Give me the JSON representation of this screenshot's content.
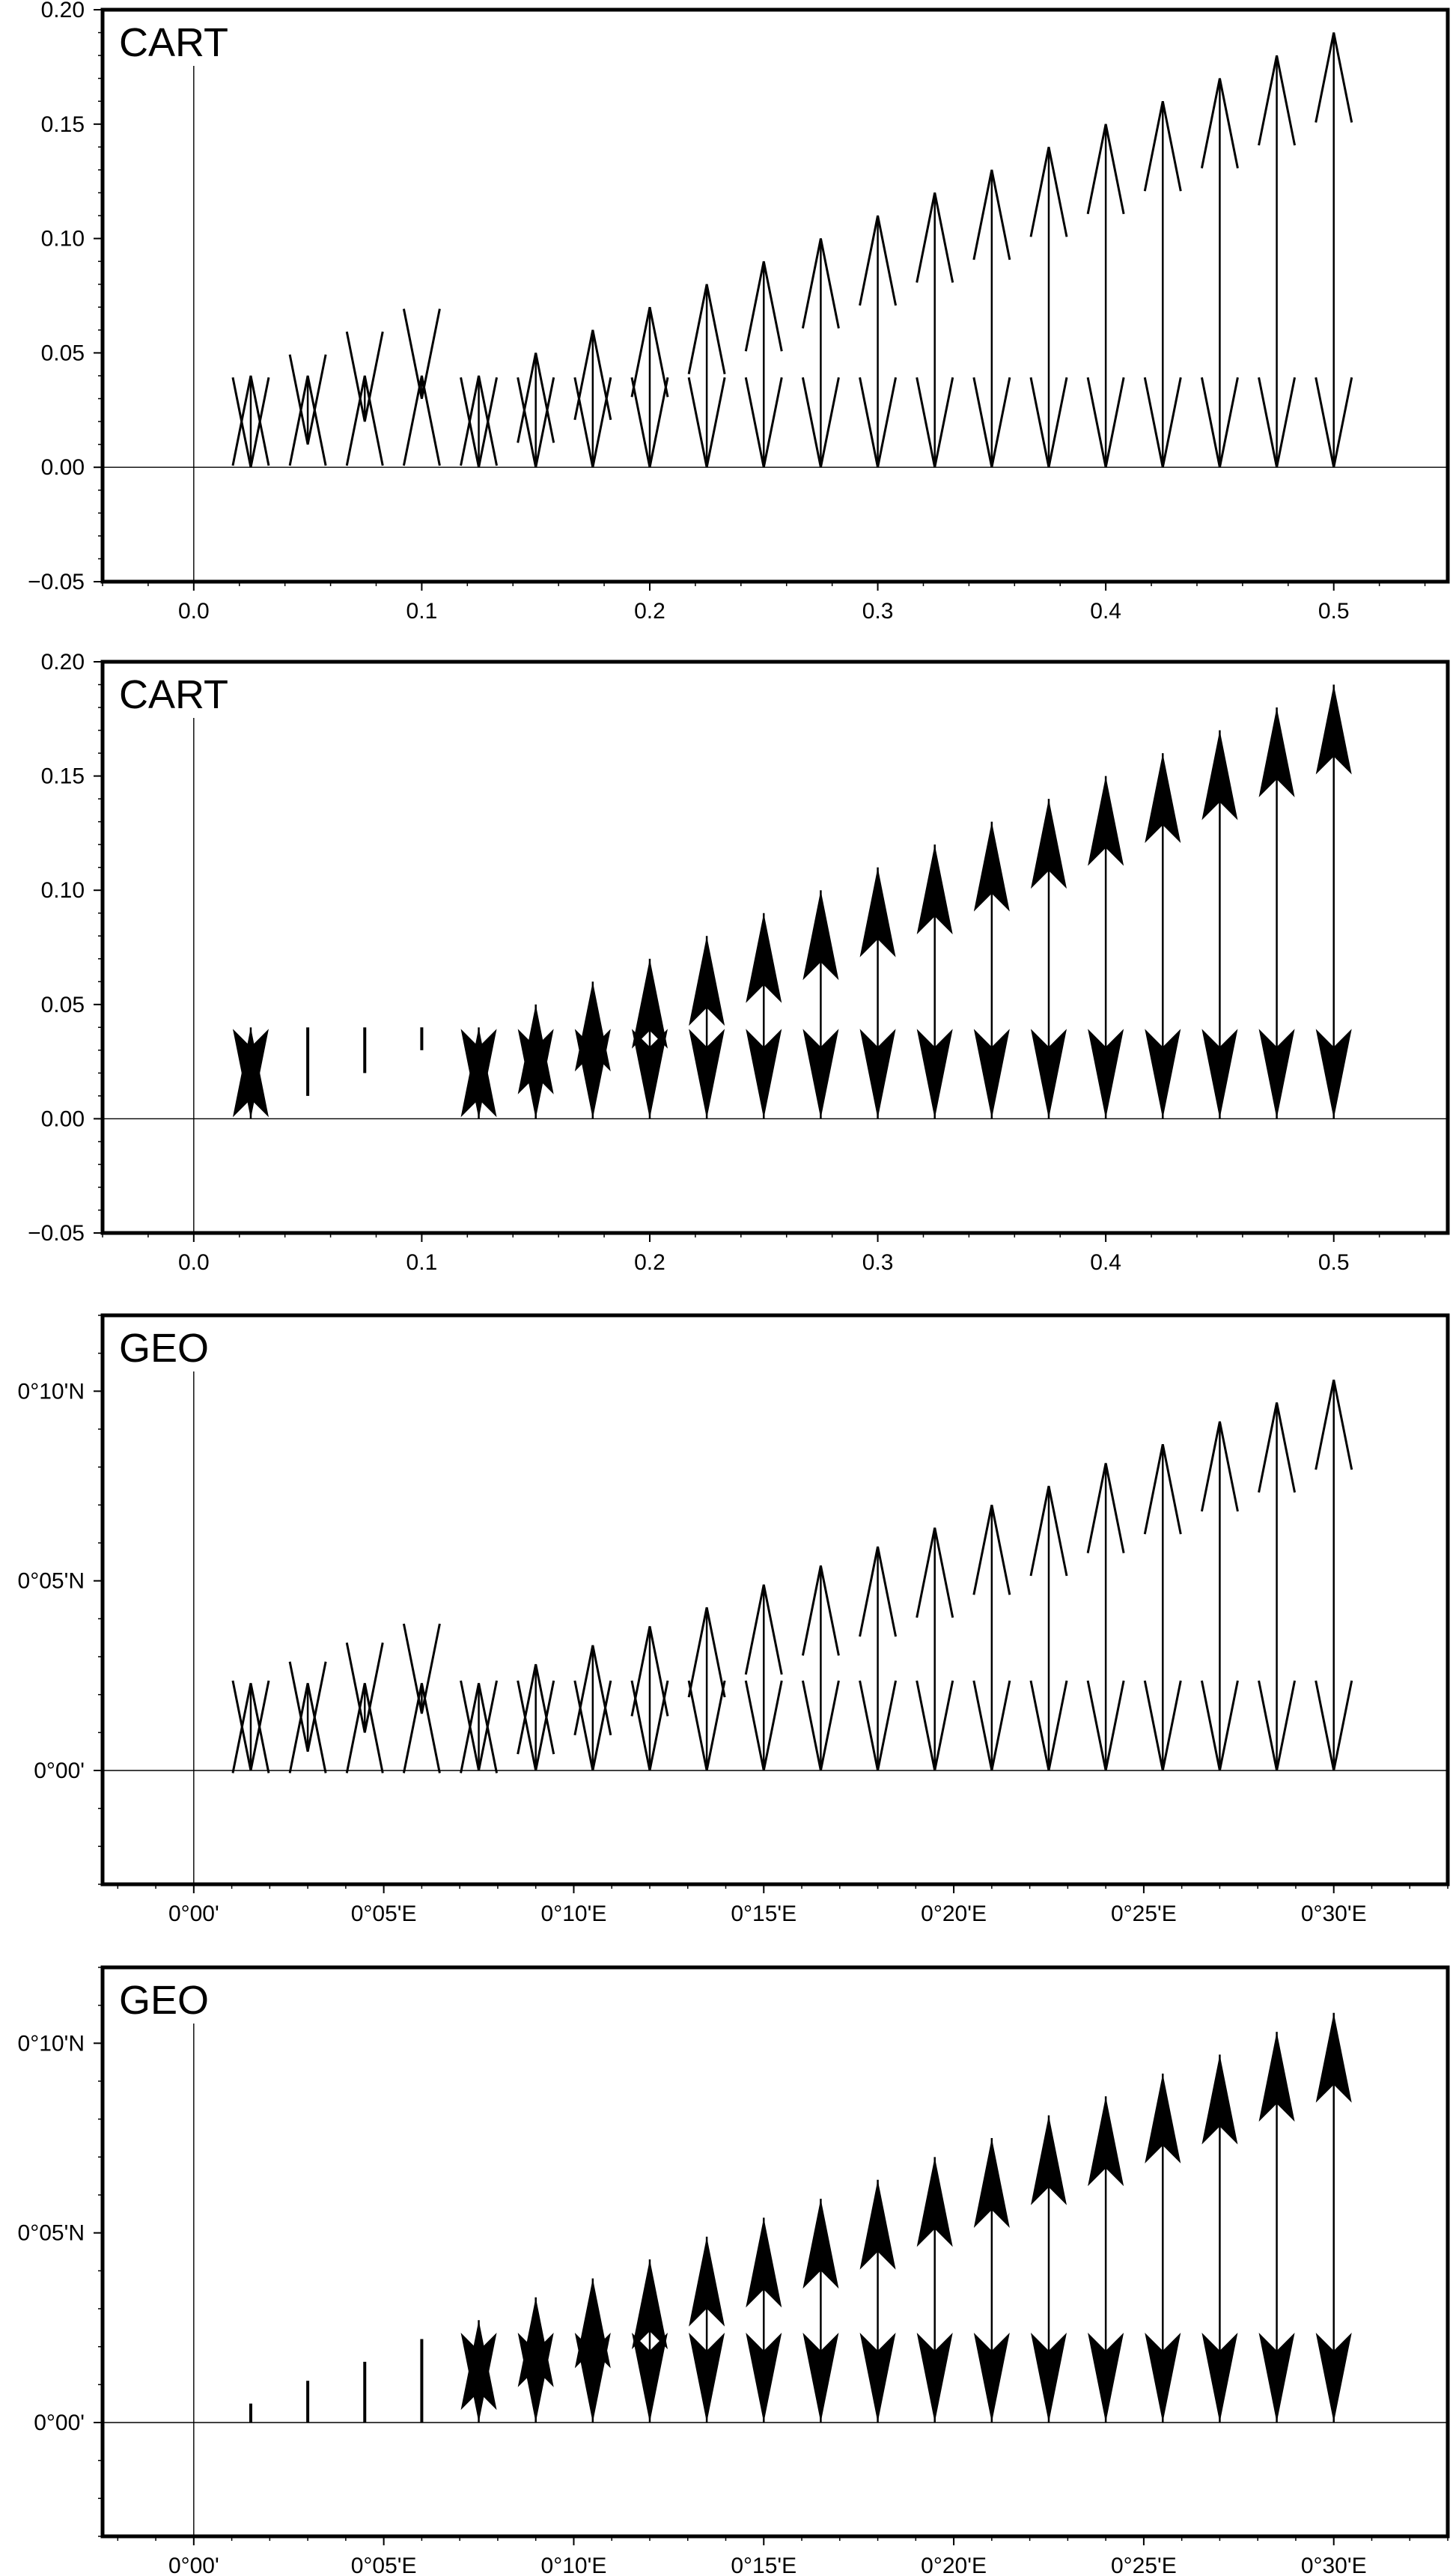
{
  "chart_data": [
    {
      "type": "vector",
      "title": "CART",
      "arrow_style": "open",
      "x_ticks": [
        0.0,
        0.1,
        0.2,
        0.3,
        0.4,
        0.5
      ],
      "x_tick_labels": [
        "0.0",
        "0.1",
        "0.2",
        "0.3",
        "0.4",
        "0.5"
      ],
      "y_ticks": [
        -0.05,
        0.0,
        0.05,
        0.1,
        0.15,
        0.2
      ],
      "y_tick_labels": [
        "−0.05",
        "0.00",
        "0.05",
        "0.10",
        "0.15",
        "0.20"
      ],
      "xlim": [
        -0.04,
        0.55
      ],
      "ylim": [
        -0.05,
        0.2
      ],
      "reference_lines": {
        "x": 0,
        "y": 0
      },
      "vectors": [
        {
          "x": 0.025,
          "y0": 0.0,
          "y1": 0.04
        },
        {
          "x": 0.05,
          "y0": 0.01,
          "y1": 0.04
        },
        {
          "x": 0.075,
          "y0": 0.02,
          "y1": 0.04
        },
        {
          "x": 0.1,
          "y0": 0.03,
          "y1": 0.04
        },
        {
          "x": 0.125,
          "y0": 0.0,
          "y1": 0.04
        },
        {
          "x": 0.15,
          "y0": 0.0,
          "y1": 0.05
        },
        {
          "x": 0.175,
          "y0": 0.0,
          "y1": 0.06
        },
        {
          "x": 0.2,
          "y0": 0.0,
          "y1": 0.07
        },
        {
          "x": 0.225,
          "y0": 0.0,
          "y1": 0.08
        },
        {
          "x": 0.25,
          "y0": 0.0,
          "y1": 0.09
        },
        {
          "x": 0.275,
          "y0": 0.0,
          "y1": 0.1
        },
        {
          "x": 0.3,
          "y0": 0.0,
          "y1": 0.11
        },
        {
          "x": 0.325,
          "y0": 0.0,
          "y1": 0.12
        },
        {
          "x": 0.35,
          "y0": 0.0,
          "y1": 0.13
        },
        {
          "x": 0.375,
          "y0": 0.0,
          "y1": 0.14
        },
        {
          "x": 0.4,
          "y0": 0.0,
          "y1": 0.15
        },
        {
          "x": 0.425,
          "y0": 0.0,
          "y1": 0.16
        },
        {
          "x": 0.45,
          "y0": 0.0,
          "y1": 0.17
        },
        {
          "x": 0.475,
          "y0": 0.0,
          "y1": 0.18
        },
        {
          "x": 0.5,
          "y0": 0.0,
          "y1": 0.19
        }
      ]
    },
    {
      "type": "vector",
      "title": "CART",
      "arrow_style": "filled",
      "x_ticks": [
        0.0,
        0.1,
        0.2,
        0.3,
        0.4,
        0.5
      ],
      "x_tick_labels": [
        "0.0",
        "0.1",
        "0.2",
        "0.3",
        "0.4",
        "0.5"
      ],
      "y_ticks": [
        -0.05,
        0.0,
        0.05,
        0.1,
        0.15,
        0.2
      ],
      "y_tick_labels": [
        "−0.05",
        "0.00",
        "0.05",
        "0.10",
        "0.15",
        "0.20"
      ],
      "xlim": [
        -0.04,
        0.55
      ],
      "ylim": [
        -0.05,
        0.2
      ],
      "reference_lines": {
        "x": 0,
        "y": 0
      },
      "vectors": [
        {
          "x": 0.025,
          "y0": 0.0,
          "y1": 0.04
        },
        {
          "x": 0.05,
          "y0": 0.01,
          "y1": 0.04
        },
        {
          "x": 0.075,
          "y0": 0.02,
          "y1": 0.04
        },
        {
          "x": 0.1,
          "y0": 0.03,
          "y1": 0.04
        },
        {
          "x": 0.125,
          "y0": 0.0,
          "y1": 0.04
        },
        {
          "x": 0.15,
          "y0": 0.0,
          "y1": 0.05
        },
        {
          "x": 0.175,
          "y0": 0.0,
          "y1": 0.06
        },
        {
          "x": 0.2,
          "y0": 0.0,
          "y1": 0.07
        },
        {
          "x": 0.225,
          "y0": 0.0,
          "y1": 0.08
        },
        {
          "x": 0.25,
          "y0": 0.0,
          "y1": 0.09
        },
        {
          "x": 0.275,
          "y0": 0.0,
          "y1": 0.1
        },
        {
          "x": 0.3,
          "y0": 0.0,
          "y1": 0.11
        },
        {
          "x": 0.325,
          "y0": 0.0,
          "y1": 0.12
        },
        {
          "x": 0.35,
          "y0": 0.0,
          "y1": 0.13
        },
        {
          "x": 0.375,
          "y0": 0.0,
          "y1": 0.14
        },
        {
          "x": 0.4,
          "y0": 0.0,
          "y1": 0.15
        },
        {
          "x": 0.425,
          "y0": 0.0,
          "y1": 0.16
        },
        {
          "x": 0.45,
          "y0": 0.0,
          "y1": 0.17
        },
        {
          "x": 0.475,
          "y0": 0.0,
          "y1": 0.18
        },
        {
          "x": 0.5,
          "y0": 0.0,
          "y1": 0.19
        }
      ]
    },
    {
      "type": "vector",
      "title": "GEO",
      "arrow_style": "open",
      "x_ticks": [
        0,
        5,
        10,
        15,
        20,
        25,
        30
      ],
      "x_tick_labels": [
        "0°00'",
        "0°05'E",
        "0°10'E",
        "0°15'E",
        "0°20'E",
        "0°25'E",
        "0°30'E"
      ],
      "y_ticks": [
        0,
        5,
        10
      ],
      "y_tick_labels": [
        "0°00'",
        "0°05'N",
        "0°10'N"
      ],
      "xlim": [
        -2.4,
        33
      ],
      "ylim": [
        -3,
        12
      ],
      "reference_lines": {
        "x": 0,
        "y": 0
      },
      "vectors": [
        {
          "x": 1.5,
          "y0": 0.0,
          "y1": 2.3
        },
        {
          "x": 3.0,
          "y0": 0.5,
          "y1": 2.3
        },
        {
          "x": 4.5,
          "y0": 1.0,
          "y1": 2.3
        },
        {
          "x": 6.0,
          "y0": 1.5,
          "y1": 2.3
        },
        {
          "x": 7.5,
          "y0": 0.0,
          "y1": 2.3
        },
        {
          "x": 9.0,
          "y0": 0.0,
          "y1": 2.8
        },
        {
          "x": 10.5,
          "y0": 0.0,
          "y1": 3.3
        },
        {
          "x": 12.0,
          "y0": 0.0,
          "y1": 3.8
        },
        {
          "x": 13.5,
          "y0": 0.0,
          "y1": 4.3
        },
        {
          "x": 15.0,
          "y0": 0.0,
          "y1": 4.9
        },
        {
          "x": 16.5,
          "y0": 0.0,
          "y1": 5.4
        },
        {
          "x": 18.0,
          "y0": 0.0,
          "y1": 5.9
        },
        {
          "x": 19.5,
          "y0": 0.0,
          "y1": 6.4
        },
        {
          "x": 21.0,
          "y0": 0.0,
          "y1": 7.0
        },
        {
          "x": 22.5,
          "y0": 0.0,
          "y1": 7.5
        },
        {
          "x": 24.0,
          "y0": 0.0,
          "y1": 8.1
        },
        {
          "x": 25.5,
          "y0": 0.0,
          "y1": 8.6
        },
        {
          "x": 27.0,
          "y0": 0.0,
          "y1": 9.2
        },
        {
          "x": 28.5,
          "y0": 0.0,
          "y1": 9.7
        },
        {
          "x": 30.0,
          "y0": 0.0,
          "y1": 10.3
        }
      ]
    },
    {
      "type": "vector",
      "title": "GEO",
      "arrow_style": "filled",
      "x_ticks": [
        0,
        5,
        10,
        15,
        20,
        25,
        30
      ],
      "x_tick_labels": [
        "0°00'",
        "0°05'E",
        "0°10'E",
        "0°15'E",
        "0°20'E",
        "0°25'E",
        "0°30'E"
      ],
      "y_ticks": [
        0,
        5,
        10
      ],
      "y_tick_labels": [
        "0°00'",
        "0°05'N",
        "0°10'N"
      ],
      "xlim": [
        -2.4,
        33
      ],
      "ylim": [
        -3,
        12
      ],
      "reference_lines": {
        "x": 0,
        "y": 0
      },
      "vectors": [
        {
          "x": 1.5,
          "y0": 0.0,
          "y1": 0.5
        },
        {
          "x": 3.0,
          "y0": 0.0,
          "y1": 1.1
        },
        {
          "x": 4.5,
          "y0": 0.0,
          "y1": 1.6
        },
        {
          "x": 6.0,
          "y0": 0.0,
          "y1": 2.2
        },
        {
          "x": 7.5,
          "y0": 0.0,
          "y1": 2.7
        },
        {
          "x": 9.0,
          "y0": 0.0,
          "y1": 3.3
        },
        {
          "x": 10.5,
          "y0": 0.0,
          "y1": 3.8
        },
        {
          "x": 12.0,
          "y0": 0.0,
          "y1": 4.3
        },
        {
          "x": 13.5,
          "y0": 0.0,
          "y1": 4.9
        },
        {
          "x": 15.0,
          "y0": 0.0,
          "y1": 5.4
        },
        {
          "x": 16.5,
          "y0": 0.0,
          "y1": 5.9
        },
        {
          "x": 18.0,
          "y0": 0.0,
          "y1": 6.4
        },
        {
          "x": 19.5,
          "y0": 0.0,
          "y1": 7.0
        },
        {
          "x": 21.0,
          "y0": 0.0,
          "y1": 7.5
        },
        {
          "x": 22.5,
          "y0": 0.0,
          "y1": 8.1
        },
        {
          "x": 24.0,
          "y0": 0.0,
          "y1": 8.6
        },
        {
          "x": 25.5,
          "y0": 0.0,
          "y1": 9.2
        },
        {
          "x": 27.0,
          "y0": 0.0,
          "y1": 9.7
        },
        {
          "x": 28.5,
          "y0": 0.0,
          "y1": 10.3
        },
        {
          "x": 30.0,
          "y0": 0.0,
          "y1": 10.8
        }
      ]
    }
  ]
}
